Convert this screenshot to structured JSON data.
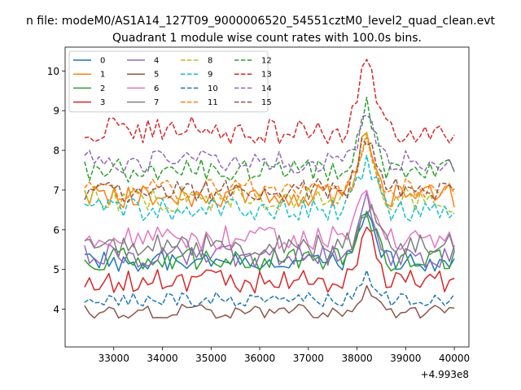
{
  "chart_data": {
    "type": "line",
    "suptitle": "n file: modeM0/AS1A14_127T09_9000006520_54551cztM0_level2_quad_clean.evt",
    "title": "Quadrant 1 module wise count rates with 100.0s bins.",
    "xlabel": "",
    "ylabel": "",
    "x_offset_label": "+4.993e8",
    "xlim": [
      32000,
      40300
    ],
    "ylim": [
      3.05,
      10.6
    ],
    "x_ticks": [
      33000,
      34000,
      35000,
      36000,
      37000,
      38000,
      39000,
      40000
    ],
    "x_tick_labels": [
      "33000",
      "34000",
      "35000",
      "36000",
      "37000",
      "38000",
      "39000",
      "40000"
    ],
    "y_ticks": [
      4,
      5,
      6,
      7,
      8,
      9,
      10
    ],
    "y_tick_labels": [
      "4",
      "5",
      "6",
      "7",
      "8",
      "9",
      "10"
    ],
    "x_range": [
      32400,
      40000
    ],
    "n_points": 77,
    "legend_position": "upper-left",
    "legend_columns": 4,
    "series": [
      {
        "name": "0",
        "color": "#1f77b4",
        "dash": "solid",
        "base": 5.2,
        "noise": 0.25,
        "peak": 1.2
      },
      {
        "name": "1",
        "color": "#ff7f0e",
        "dash": "solid",
        "base": 6.85,
        "noise": 0.3,
        "peak": 1.6
      },
      {
        "name": "2",
        "color": "#2ca02c",
        "dash": "solid",
        "base": 5.25,
        "noise": 0.3,
        "peak": 1.1
      },
      {
        "name": "3",
        "color": "#d62728",
        "dash": "solid",
        "base": 4.7,
        "noise": 0.3,
        "peak": 1.4
      },
      {
        "name": "4",
        "color": "#9467bd",
        "dash": "solid",
        "base": 5.35,
        "noise": 0.3,
        "peak": 1.3
      },
      {
        "name": "5",
        "color": "#8c564b",
        "dash": "solid",
        "base": 3.95,
        "noise": 0.18,
        "peak": 0.5
      },
      {
        "name": "6",
        "color": "#e377c2",
        "dash": "solid",
        "base": 5.8,
        "noise": 0.3,
        "peak": 1.2
      },
      {
        "name": "7",
        "color": "#7f7f7f",
        "dash": "solid",
        "base": 5.6,
        "noise": 0.3,
        "peak": 1.0
      },
      {
        "name": "8",
        "color": "#bcbd22",
        "dash": "dashed",
        "base": 6.8,
        "noise": 0.35,
        "peak": 1.4
      },
      {
        "name": "9",
        "color": "#17becf",
        "dash": "dashed",
        "base": 6.5,
        "noise": 0.3,
        "peak": 1.2
      },
      {
        "name": "10",
        "color": "#1f77b4",
        "dash": "dashed",
        "base": 4.25,
        "noise": 0.18,
        "peak": 0.6
      },
      {
        "name": "11",
        "color": "#ff7f0e",
        "dash": "dashed",
        "base": 7.0,
        "noise": 0.3,
        "peak": 1.3
      },
      {
        "name": "12",
        "color": "#2ca02c",
        "dash": "dashed",
        "base": 7.5,
        "noise": 0.3,
        "peak": 1.6
      },
      {
        "name": "13",
        "color": "#d62728",
        "dash": "dashed",
        "base": 8.5,
        "noise": 0.35,
        "peak": 1.6
      },
      {
        "name": "14",
        "color": "#9467bd",
        "dash": "dashed",
        "base": 7.7,
        "noise": 0.3,
        "peak": 1.1
      },
      {
        "name": "15",
        "color": "#8c564b",
        "dash": "dashed",
        "base": 7.0,
        "noise": 0.3,
        "peak": 1.3
      }
    ]
  }
}
